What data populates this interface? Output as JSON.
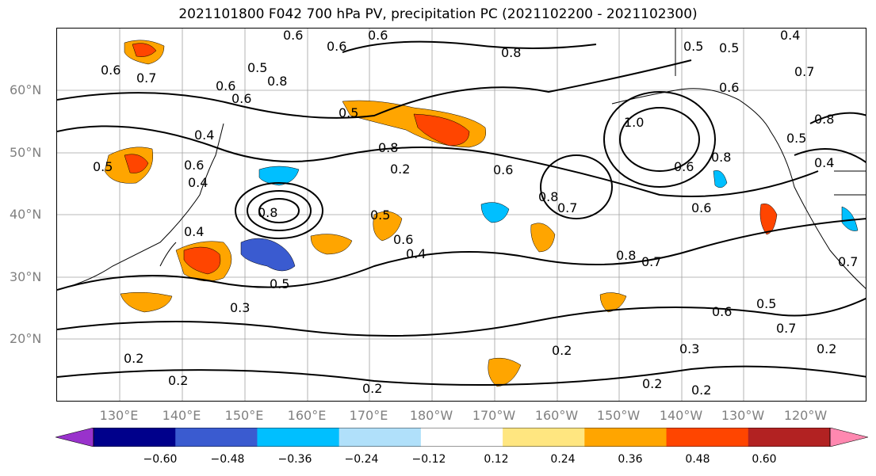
{
  "title": "2021101800 F042 700 hPa PV, precipitation PC (2021102200 - 2021102300)",
  "lat_labels": [
    "60°N",
    "50°N",
    "40°N",
    "30°N",
    "20°N"
  ],
  "lon_labels": [
    "130°E",
    "140°E",
    "150°E",
    "160°E",
    "170°E",
    "180°W",
    "170°W",
    "160°W",
    "150°W",
    "140°W",
    "130°W",
    "120°W"
  ],
  "contour_labels": [
    "0.6",
    "0.6",
    "0.6",
    "0.4",
    "0.6",
    "0.7",
    "0.5",
    "0.6",
    "0.8",
    "0.5",
    "0.5",
    "0.8",
    "0.5",
    "0.7",
    "1.0",
    "0.8",
    "0.5",
    "0.4",
    "0.6",
    "0.4",
    "0.5",
    "0.6",
    "0.8",
    "0.2",
    "0.6",
    "0.8",
    "0.7",
    "0.6",
    "0.6",
    "0.8",
    "0.4",
    "0.5",
    "0.6",
    "0.4",
    "0.8",
    "0.7",
    "0.3",
    "0.5",
    "0.6",
    "0.5",
    "0.7",
    "0.3",
    "0.2",
    "0.2",
    "0.2",
    "0.2",
    "0.2",
    "0.2",
    "0.2",
    "0.6",
    "0.4",
    "0.7",
    "0.8"
  ],
  "colorbar": {
    "ticks": [
      "−0.60",
      "−0.48",
      "−0.36",
      "−0.24",
      "−0.12",
      "0.12",
      "0.24",
      "0.36",
      "0.48",
      "0.60"
    ],
    "colors": [
      "#9932cc",
      "#00008b",
      "#3a5bd0",
      "#00bfff",
      "#b0e0fa",
      "#ffffff",
      "#ffe680",
      "#ffa500",
      "#ff4500",
      "#b22222",
      "#ff88b0"
    ]
  },
  "colors": {
    "coast": "#000000",
    "grid": "#a0a0a0",
    "contour": "#000000",
    "tick_label": "#808080"
  }
}
